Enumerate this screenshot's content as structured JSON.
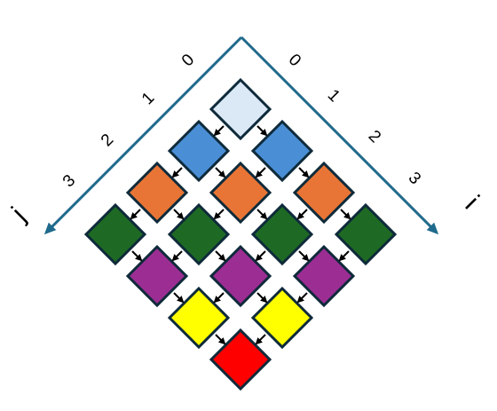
{
  "axes": {
    "i": {
      "label": "i",
      "ticks": [
        "0",
        "1",
        "2",
        "3"
      ]
    },
    "j": {
      "label": "j",
      "ticks": [
        "0",
        "1",
        "2",
        "3"
      ]
    }
  },
  "colors": {
    "axis": "#1f6a8c",
    "cell_border": "#0e2a3a",
    "arrow": "#000000",
    "level": [
      "#dbe8f6",
      "#4a8fd6",
      "#e87535",
      "#1e6a24",
      "#9c2d93",
      "#ffff00",
      "#ff0000"
    ]
  },
  "cells": [
    {
      "i": 0,
      "j": 0
    },
    {
      "i": 0,
      "j": 1
    },
    {
      "i": 1,
      "j": 0
    },
    {
      "i": 0,
      "j": 2
    },
    {
      "i": 1,
      "j": 1
    },
    {
      "i": 2,
      "j": 0
    },
    {
      "i": 0,
      "j": 3
    },
    {
      "i": 1,
      "j": 2
    },
    {
      "i": 2,
      "j": 1
    },
    {
      "i": 3,
      "j": 0
    },
    {
      "i": 1,
      "j": 3
    },
    {
      "i": 2,
      "j": 2
    },
    {
      "i": 3,
      "j": 1
    },
    {
      "i": 2,
      "j": 3
    },
    {
      "i": 3,
      "j": 2
    },
    {
      "i": 3,
      "j": 3
    }
  ]
}
